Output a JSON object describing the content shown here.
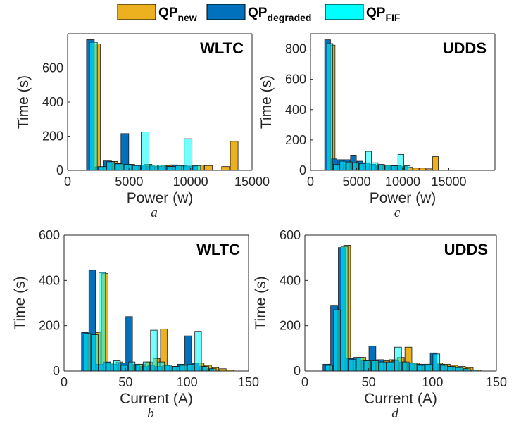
{
  "legend": {
    "items": [
      {
        "base": "QP",
        "sub": "new",
        "color": "#EDB120"
      },
      {
        "base": "QP",
        "sub": "degraded",
        "color": "#0072BD"
      },
      {
        "base": "QP",
        "sub": "FIF",
        "color": "#00FFFF"
      }
    ]
  },
  "chart_data": [
    {
      "id": "a",
      "type": "bar",
      "title": "WLTC",
      "sublabel": "a",
      "xlabel": "Power (w)",
      "ylabel": "Time (s)",
      "xlim": [
        0,
        15000
      ],
      "ylim": [
        0,
        800
      ],
      "xticks": [
        0,
        5000,
        10000,
        15000
      ],
      "yticks": [
        0,
        200,
        400,
        600
      ],
      "bin_width": 700,
      "bin_centers": [
        2100,
        2800,
        3500,
        4200,
        4900,
        5600,
        6300,
        7000,
        7700,
        8400,
        9100,
        9800,
        10500,
        11200,
        11900,
        12600,
        13300
      ],
      "series": [
        {
          "name": "QP_new",
          "color": "#EDB120",
          "values": [
            740,
            15,
            52,
            40,
            35,
            28,
            35,
            22,
            30,
            32,
            28,
            22,
            30,
            28,
            0,
            22,
            170
          ]
        },
        {
          "name": "QP_degraded",
          "color": "#0072BD",
          "values": [
            765,
            20,
            55,
            40,
            215,
            30,
            30,
            25,
            22,
            25,
            30,
            25,
            25,
            0,
            0,
            0,
            0
          ]
        },
        {
          "name": "QP_FIF",
          "color": "#00FFFF",
          "values": [
            750,
            22,
            50,
            38,
            35,
            28,
            225,
            30,
            30,
            22,
            28,
            185,
            28,
            0,
            0,
            0,
            0
          ]
        }
      ]
    },
    {
      "id": "c",
      "type": "bar",
      "title": "UDDS",
      "sublabel": "c",
      "xlabel": "Power (w)",
      "ylabel": "Time (s)",
      "xlim": [
        0,
        20000
      ],
      "ylim": [
        0,
        900
      ],
      "xticks": [
        0,
        5000,
        10000,
        15000
      ],
      "yticks": [
        0,
        200,
        400,
        600,
        800
      ],
      "bin_width": 700,
      "bin_centers": [
        2100,
        2800,
        3500,
        4200,
        4900,
        5600,
        6300,
        7000,
        7700,
        8400,
        9100,
        9800,
        10500,
        11200,
        11900,
        12600,
        13300
      ],
      "series": [
        {
          "name": "QP_new",
          "color": "#EDB120",
          "values": [
            825,
            30,
            45,
            40,
            45,
            35,
            40,
            35,
            30,
            30,
            25,
            20,
            20,
            15,
            15,
            10,
            90
          ]
        },
        {
          "name": "QP_degraded",
          "color": "#0072BD",
          "values": [
            860,
            75,
            70,
            70,
            100,
            60,
            50,
            40,
            35,
            30,
            30,
            30,
            25,
            0,
            0,
            0,
            0
          ]
        },
        {
          "name": "QP_FIF",
          "color": "#00FFFF",
          "values": [
            835,
            40,
            60,
            55,
            50,
            45,
            125,
            50,
            40,
            35,
            30,
            105,
            30,
            0,
            0,
            0,
            0
          ]
        }
      ]
    },
    {
      "id": "b",
      "type": "bar",
      "title": "WLTC",
      "sublabel": "b",
      "xlabel": "Current (A)",
      "ylabel": "Time (s)",
      "xlim": [
        0,
        150
      ],
      "ylim": [
        0,
        600
      ],
      "xticks": [
        0,
        50,
        100,
        150
      ],
      "yticks": [
        0,
        200,
        400,
        600
      ],
      "bin_width": 6,
      "bin_centers": [
        19,
        25,
        31,
        37,
        43,
        49,
        55,
        61,
        67,
        73,
        79,
        85,
        91,
        97,
        103,
        109,
        115,
        121,
        127,
        133
      ],
      "series": [
        {
          "name": "QP_new",
          "color": "#EDB120",
          "values": [
            160,
            170,
            430,
            30,
            40,
            25,
            30,
            30,
            40,
            55,
            185,
            20,
            20,
            25,
            25,
            35,
            25,
            15,
            10,
            5
          ]
        },
        {
          "name": "QP_degraded",
          "color": "#0072BD",
          "values": [
            170,
            445,
            30,
            40,
            30,
            35,
            240,
            25,
            20,
            25,
            20,
            25,
            20,
            30,
            155,
            35,
            20,
            10,
            0,
            0
          ]
        },
        {
          "name": "QP_FIF",
          "color": "#00FFFF",
          "values": [
            165,
            160,
            435,
            35,
            45,
            25,
            40,
            30,
            40,
            180,
            40,
            25,
            20,
            25,
            30,
            175,
            20,
            10,
            0,
            0
          ]
        }
      ]
    },
    {
      "id": "d",
      "type": "bar",
      "title": "UDDS",
      "sublabel": "d",
      "xlabel": "Current (A)",
      "ylabel": "Time (s)",
      "xlim": [
        0,
        150
      ],
      "ylim": [
        0,
        600
      ],
      "xticks": [
        0,
        50,
        100,
        150
      ],
      "yticks": [
        0,
        200,
        400,
        600
      ],
      "bin_width": 6,
      "bin_centers": [
        19,
        25,
        31,
        37,
        43,
        49,
        55,
        61,
        67,
        73,
        79,
        85,
        91,
        97,
        103,
        109,
        115,
        121,
        127,
        133
      ],
      "series": [
        {
          "name": "QP_new",
          "color": "#EDB120",
          "values": [
            30,
            280,
            555,
            50,
            60,
            40,
            40,
            45,
            50,
            60,
            105,
            35,
            25,
            30,
            35,
            30,
            25,
            20,
            15,
            5
          ]
        },
        {
          "name": "QP_degraded",
          "color": "#0072BD",
          "values": [
            30,
            290,
            545,
            55,
            60,
            45,
            110,
            50,
            40,
            45,
            40,
            35,
            30,
            30,
            80,
            30,
            20,
            15,
            10,
            5
          ]
        },
        {
          "name": "QP_FIF",
          "color": "#00FFFF",
          "values": [
            25,
            270,
            550,
            50,
            60,
            45,
            45,
            40,
            40,
            105,
            40,
            35,
            25,
            30,
            75,
            25,
            20,
            15,
            10,
            5
          ]
        }
      ]
    }
  ]
}
